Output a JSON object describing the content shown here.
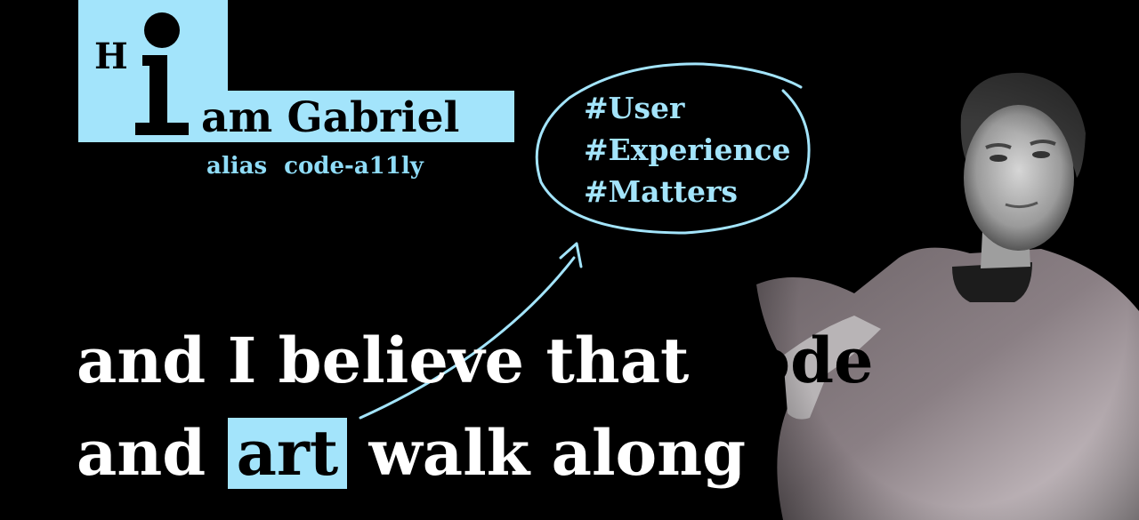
{
  "intro": {
    "h_letter": "H",
    "name_line": "am Gabriel",
    "alias_line": "alias code-a11ly"
  },
  "hashtags": [
    "#User",
    "#Experience",
    "#Matters"
  ],
  "headline": {
    "line1_white": "and I believe that",
    "line1_dark": "code",
    "line2_before": "and",
    "line2_highlight": "art",
    "line2_after": "walk along"
  },
  "colors": {
    "background": "#000000",
    "accent": "#a3e4fb",
    "text": "#ffffff"
  },
  "icons": {
    "arrow": "curved-arrow-icon",
    "circle": "hand-drawn-circle-icon"
  }
}
